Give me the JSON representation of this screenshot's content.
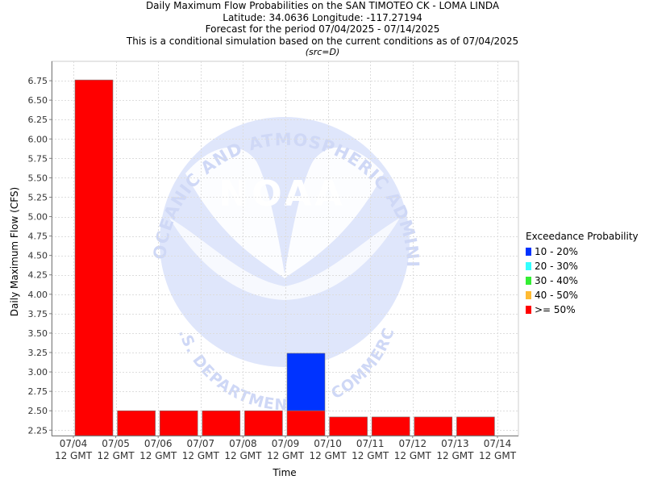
{
  "titles": {
    "line1": "Daily Maximum Flow Probabilities on the SAN TIMOTEO CK - LOMA LINDA",
    "line2": "Latitude: 34.0636 Longitude: -117.27194",
    "line3": "Forecast for the period 07/04/2025 - 07/14/2025",
    "line4": "This is a conditional simulation based on the current conditions as of 07/04/2025",
    "src": "(src=D)"
  },
  "watermark": {
    "outer_text": "NATIONAL OCEANIC AND ATMOSPHERIC ADMINISTRATION",
    "inner_text": "U.S. DEPARTMENT OF COMMERCE",
    "logo_text": "NOAA"
  },
  "legend": {
    "title": "Exceedance Probability",
    "items": [
      {
        "label": "10 - 20%",
        "color": "#0033ff"
      },
      {
        "label": "20 - 30%",
        "color": "#33ffff"
      },
      {
        "label": "30 - 40%",
        "color": "#33ee33"
      },
      {
        "label": "40 - 50%",
        "color": "#ffbb33"
      },
      {
        "label": ">= 50%",
        "color": "#ff0000"
      }
    ]
  },
  "chart_data": {
    "type": "bar",
    "xlabel": "Time",
    "ylabel": "Daily Maximum Flow (CFS)",
    "ylim": [
      2.18,
      7.0
    ],
    "y_ticks": [
      2.25,
      2.5,
      2.75,
      3.0,
      3.25,
      3.5,
      3.75,
      4.0,
      4.25,
      4.5,
      4.75,
      5.0,
      5.25,
      5.5,
      5.75,
      6.0,
      6.25,
      6.5,
      6.75
    ],
    "x_ticks": [
      {
        "line1": "07/04",
        "line2": "12 GMT"
      },
      {
        "line1": "07/05",
        "line2": "12 GMT"
      },
      {
        "line1": "07/06",
        "line2": "12 GMT"
      },
      {
        "line1": "07/07",
        "line2": "12 GMT"
      },
      {
        "line1": "07/08",
        "line2": "12 GMT"
      },
      {
        "line1": "07/09",
        "line2": "12 GMT"
      },
      {
        "line1": "07/10",
        "line2": "12 GMT"
      },
      {
        "line1": "07/11",
        "line2": "12 GMT"
      },
      {
        "line1": "07/12",
        "line2": "12 GMT"
      },
      {
        "line1": "07/13",
        "line2": "12 GMT"
      },
      {
        "line1": "07/14",
        "line2": "12 GMT"
      }
    ],
    "grid": true,
    "legend_position": "right",
    "bars": [
      {
        "day": 0,
        "ge50": 6.76,
        "p10_20": 6.76
      },
      {
        "day": 1,
        "ge50": 2.5,
        "p10_20": 2.5
      },
      {
        "day": 2,
        "ge50": 2.5,
        "p10_20": 2.5
      },
      {
        "day": 3,
        "ge50": 2.5,
        "p10_20": 2.5
      },
      {
        "day": 4,
        "ge50": 2.5,
        "p10_20": 2.5
      },
      {
        "day": 5,
        "ge50": 2.5,
        "p10_20": 3.24
      },
      {
        "day": 6,
        "ge50": 2.42,
        "p10_20": 2.42
      },
      {
        "day": 7,
        "ge50": 2.42,
        "p10_20": 2.42
      },
      {
        "day": 8,
        "ge50": 2.42,
        "p10_20": 2.42
      },
      {
        "day": 9,
        "ge50": 2.42,
        "p10_20": 2.42
      }
    ]
  }
}
